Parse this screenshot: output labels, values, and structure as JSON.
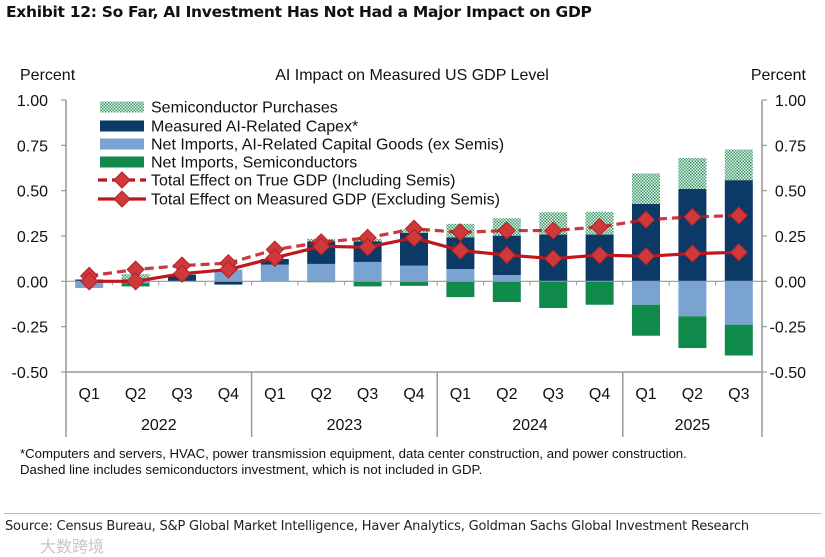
{
  "header": {
    "title": "Exhibit 12: So Far, AI Investment Has Not Had a Major Impact on GDP"
  },
  "footnote": {
    "line1": "*Computers and servers, HVAC, power transmission equipment, data center construction, and power construction.",
    "line2": "Dashed line includes semiconductors investment, which is not included in GDP."
  },
  "source": "Source: Census Bureau, S&P Global Market Intelligence, Haver Analytics, Goldman Sachs Global Investment Research",
  "watermark": "大数跨境",
  "chart_data": {
    "type": "bar",
    "title": "AI Impact on Measured US GDP Level",
    "ylabel_left": "Percent",
    "ylabel_right": "Percent",
    "ylim": [
      -0.5,
      1.0
    ],
    "yticks": [
      "1.00",
      "0.75",
      "0.50",
      "0.25",
      "0.00",
      "-0.25",
      "-0.50"
    ],
    "ytick_values": [
      1.0,
      0.75,
      0.5,
      0.25,
      0,
      -0.25,
      -0.5
    ],
    "categories": [
      "Q1",
      "Q2",
      "Q3",
      "Q4",
      "Q1",
      "Q2",
      "Q3",
      "Q4",
      "Q1",
      "Q2",
      "Q3",
      "Q4",
      "Q1",
      "Q2",
      "Q3"
    ],
    "years": [
      "2022",
      "2023",
      "2024",
      "2025"
    ],
    "quarters_per_year": [
      4,
      4,
      4,
      3
    ],
    "legend_placement": "top-left",
    "colors": {
      "semis_purchases": "#3d9a6a",
      "capex": "#0b3a66",
      "netimp_cap": "#7ba3d1",
      "netimp_semi": "#0f8a4a",
      "line": "#c0161c",
      "marker": "#d0393c"
    },
    "series": [
      {
        "name": "Semiconductor Purchases",
        "kind": "bar",
        "values": [
          0,
          0.03,
          0,
          0,
          0,
          0.013,
          0.013,
          0.02,
          0.074,
          0.096,
          0.123,
          0.125,
          0.168,
          0.17,
          0.169
        ]
      },
      {
        "name": "Measured AI-Related Capex*",
        "kind": "bar",
        "values": [
          0.01,
          0.01,
          0.037,
          -0.018,
          0.031,
          0.125,
          0.114,
          0.18,
          0.175,
          0.217,
          0.258,
          0.258,
          0.427,
          0.51,
          0.558
        ]
      },
      {
        "name": "Net Imports, AI-Related Capital Goods (ex Semis)",
        "kind": "bar",
        "values": [
          -0.037,
          -0.01,
          0,
          0.065,
          0.092,
          0.096,
          0.107,
          0.087,
          0.068,
          0.035,
          0,
          0,
          -0.129,
          -0.193,
          -0.239
        ]
      },
      {
        "name": "Net Imports, Semiconductors",
        "kind": "bar",
        "values": [
          0,
          -0.018,
          0,
          0,
          0,
          -0.005,
          -0.028,
          -0.025,
          -0.087,
          -0.114,
          -0.147,
          -0.129,
          -0.171,
          -0.175,
          -0.17
        ]
      },
      {
        "name": "Total Effect on True GDP (Including Semis)",
        "kind": "line",
        "dashed": true,
        "values": [
          0.03,
          0.065,
          0.087,
          0.1,
          0.175,
          0.215,
          0.24,
          0.29,
          0.27,
          0.28,
          0.28,
          0.3,
          0.34,
          0.355,
          0.363
        ]
      },
      {
        "name": "Total Effect on Measured GDP (Excluding Semis)",
        "kind": "line",
        "dashed": false,
        "values": [
          0.0,
          0.0,
          0.042,
          0.065,
          0.13,
          0.193,
          0.188,
          0.24,
          0.17,
          0.145,
          0.125,
          0.145,
          0.138,
          0.153,
          0.16
        ]
      }
    ]
  }
}
